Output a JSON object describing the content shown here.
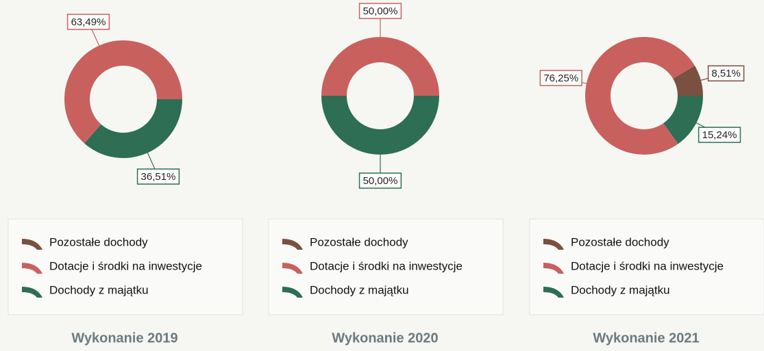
{
  "chart_data": [
    {
      "type": "pie",
      "title": "Wykonanie 2019",
      "categories": [
        "Pozostałe dochody",
        "Dotacje i środki na inwestycje",
        "Dochody z majątku"
      ],
      "values": [
        0,
        63.49,
        36.51
      ],
      "value_labels": [
        null,
        "63,49%",
        "36,51%"
      ],
      "colors": [
        "#7a5040",
        "#c8615e",
        "#2d6e55"
      ]
    },
    {
      "type": "pie",
      "title": "Wykonanie 2020",
      "categories": [
        "Pozostałe dochody",
        "Dotacje i środki na inwestycje",
        "Dochody z majątku"
      ],
      "values": [
        0,
        50.0,
        50.0
      ],
      "value_labels": [
        null,
        "50,00%",
        "50,00%"
      ],
      "colors": [
        "#7a5040",
        "#c8615e",
        "#2d6e55"
      ]
    },
    {
      "type": "pie",
      "title": "Wykonanie 2021",
      "categories": [
        "Pozostałe dochody",
        "Dotacje i środki na inwestycje",
        "Dochody z majątku"
      ],
      "values": [
        8.51,
        76.25,
        15.24
      ],
      "value_labels": [
        "8,51%",
        "76,25%",
        "15,24%"
      ],
      "colors": [
        "#7a5040",
        "#c8615e",
        "#2d6e55"
      ]
    }
  ]
}
